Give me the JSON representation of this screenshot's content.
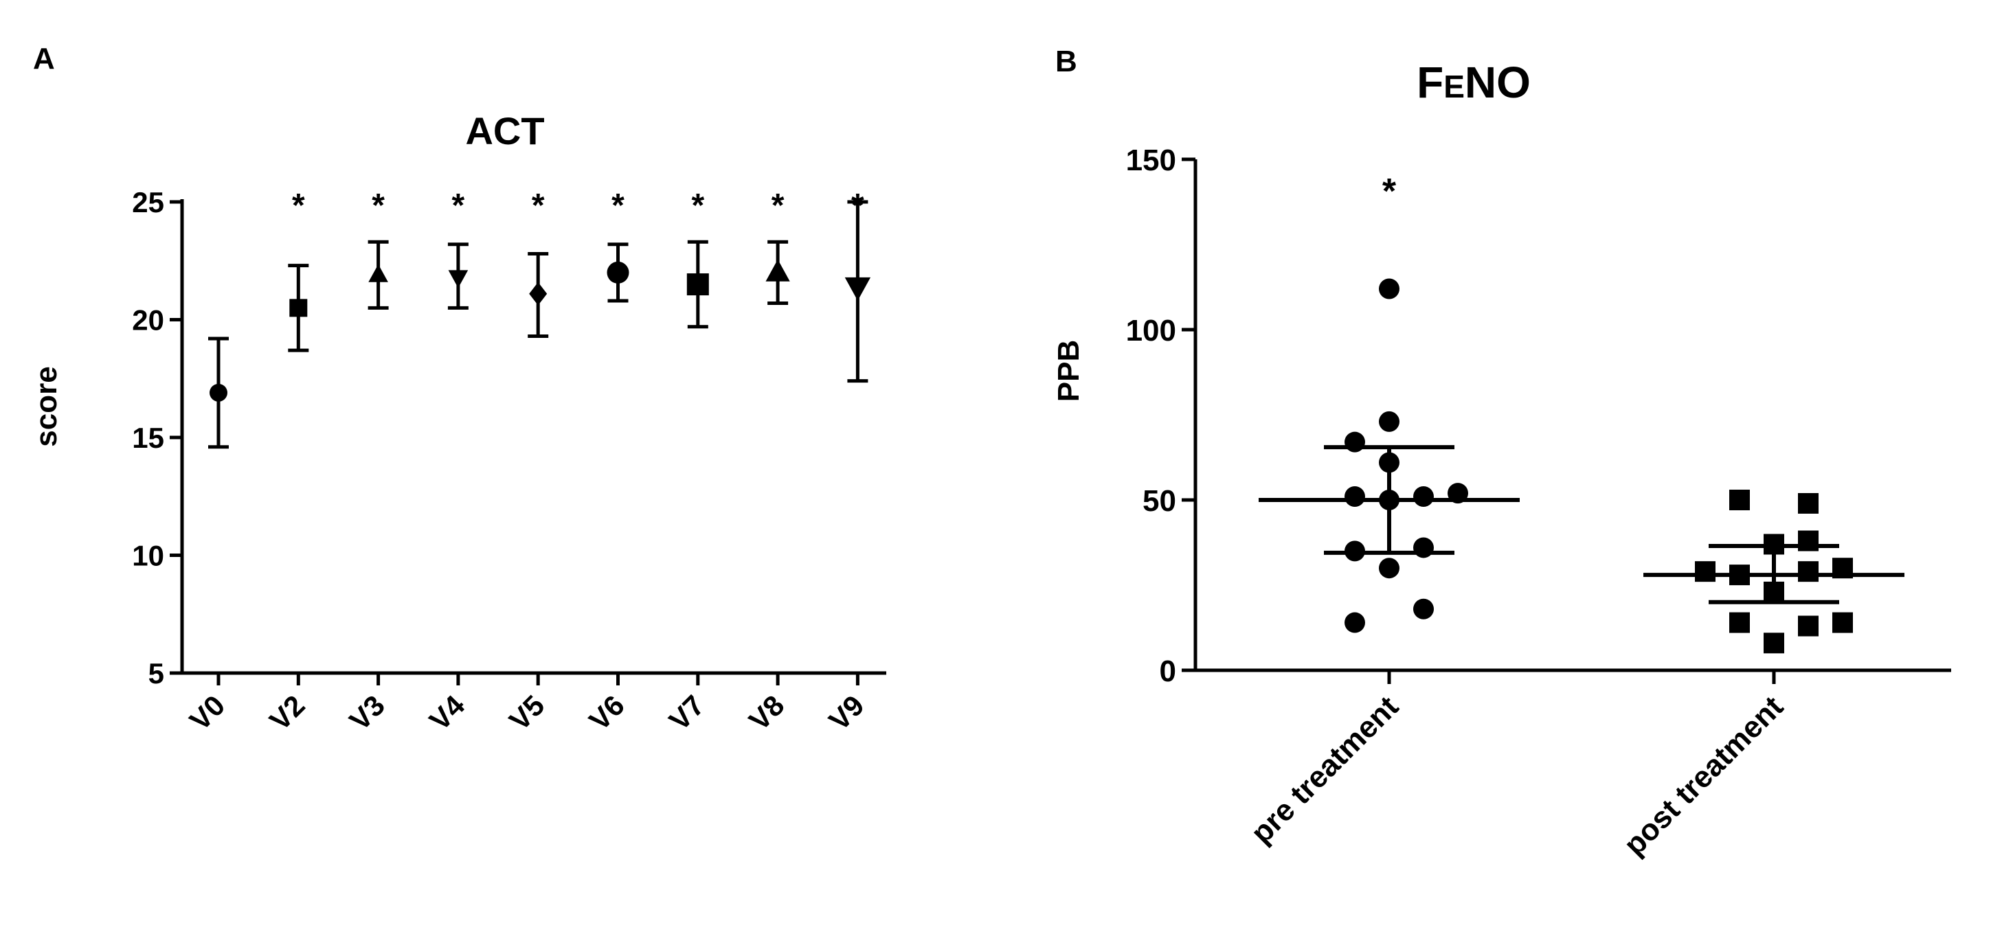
{
  "panels": {
    "a_label": "A",
    "b_label": "B"
  },
  "chart_data": [
    {
      "type": "scatter",
      "variant": "mean-with-error-bars",
      "title": "ACT",
      "xlabel": "",
      "ylabel": "score",
      "ylim": [
        5,
        25
      ],
      "yticks": [
        5,
        10,
        15,
        20,
        25
      ],
      "categories": [
        "V0",
        "V2",
        "V3",
        "V4",
        "V5",
        "V6",
        "V7",
        "V8",
        "V9"
      ],
      "values": [
        16.9,
        20.5,
        21.9,
        21.8,
        21.1,
        22.0,
        21.5,
        22.0,
        21.4
      ],
      "error_low": [
        14.6,
        18.7,
        20.5,
        20.5,
        19.3,
        20.8,
        19.7,
        20.7,
        17.4
      ],
      "error_high": [
        19.2,
        22.3,
        23.3,
        23.2,
        22.8,
        23.2,
        23.3,
        23.3,
        25.0
      ],
      "markers": [
        "circle",
        "square",
        "triangle-up",
        "triangle-down",
        "diamond",
        "circle",
        "square",
        "triangle-up",
        "triangle-down"
      ],
      "significance": [
        "",
        "*",
        "*",
        "*",
        "*",
        "*",
        "*",
        "*",
        "*"
      ],
      "tick_labels_rotated": true,
      "grid": false,
      "legend": "none"
    },
    {
      "type": "scatter",
      "variant": "dot-plot-mean-sd",
      "title": "FeNO",
      "title_main": "F",
      "title_sub": "E",
      "title_rest": "NO",
      "xlabel": "",
      "ylabel": "PPB",
      "ylim": [
        0,
        150
      ],
      "yticks": [
        0,
        50,
        100,
        150
      ],
      "categories": [
        "pre treatment",
        "post  treatment"
      ],
      "series": [
        {
          "category": "pre treatment",
          "marker": "circle",
          "mean": 50,
          "sd_low": 34.5,
          "sd_high": 65.5,
          "significance": "*",
          "points": [
            {
              "value": 112,
              "offset": 0
            },
            {
              "value": 73,
              "offset": 0
            },
            {
              "value": 67,
              "offset": -1
            },
            {
              "value": 61,
              "offset": 0
            },
            {
              "value": 51,
              "offset": -1
            },
            {
              "value": 51,
              "offset": 1
            },
            {
              "value": 52,
              "offset": 2
            },
            {
              "value": 50,
              "offset": 0
            },
            {
              "value": 35,
              "offset": -1
            },
            {
              "value": 36,
              "offset": 1
            },
            {
              "value": 30,
              "offset": 0
            },
            {
              "value": 18,
              "offset": 1
            },
            {
              "value": 14,
              "offset": -1
            }
          ]
        },
        {
          "category": "post  treatment",
          "marker": "square",
          "mean": 28,
          "sd_low": 20,
          "sd_high": 36.5,
          "significance": "",
          "points": [
            {
              "value": 50,
              "offset": -1
            },
            {
              "value": 49,
              "offset": 1
            },
            {
              "value": 38,
              "offset": 1
            },
            {
              "value": 37,
              "offset": 0
            },
            {
              "value": 29,
              "offset": -2
            },
            {
              "value": 28,
              "offset": -1
            },
            {
              "value": 29,
              "offset": 1
            },
            {
              "value": 30,
              "offset": 2
            },
            {
              "value": 23,
              "offset": 0
            },
            {
              "value": 14,
              "offset": -1
            },
            {
              "value": 13,
              "offset": 1
            },
            {
              "value": 14,
              "offset": 2
            },
            {
              "value": 8,
              "offset": 0
            }
          ]
        }
      ],
      "tick_labels_rotated": true,
      "grid": false,
      "legend": "none"
    }
  ]
}
